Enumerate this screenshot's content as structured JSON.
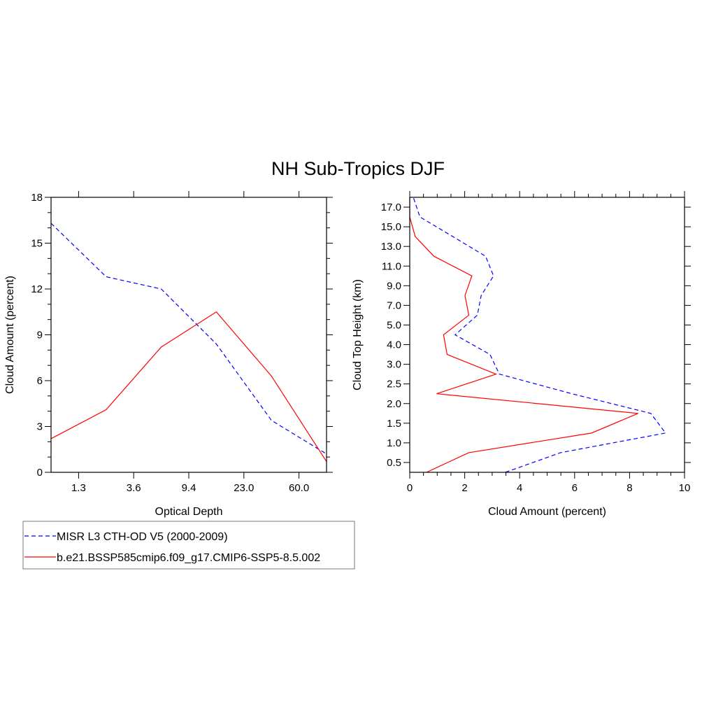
{
  "title": "NH Sub-Tropics DJF",
  "colors": {
    "obs": "#0000ff",
    "model": "#ff0000"
  },
  "legend": {
    "placement": "bottom-left",
    "entries": [
      {
        "label": "MISR L3 CTH-OD V5 (2000-2009)",
        "style": "dashed",
        "color": "#0000ff"
      },
      {
        "label": "b.e21.BSSP585cmip6.f09_g17.CMIP6-SSP5-8.5.002",
        "style": "solid",
        "color": "#ff0000"
      }
    ]
  },
  "chart_data": [
    {
      "type": "line",
      "xlabel": "Optical Depth",
      "ylabel": "Cloud Amount (percent)",
      "x_tick_labels": [
        "1.3",
        "3.6",
        "9.4",
        "23.0",
        "60.0"
      ],
      "ylim": [
        0,
        18
      ],
      "y_ticks": [
        0,
        3,
        6,
        9,
        12,
        15,
        18
      ],
      "grid": false,
      "series": [
        {
          "name": "MISR L3 CTH-OD V5 (2000-2009)",
          "values": [
            16.3,
            12.8,
            12.0,
            8.4,
            3.4,
            1.2
          ]
        },
        {
          "name": "b.e21.BSSP585cmip6.f09_g17.CMIP6-SSP5-8.5.002",
          "values": [
            2.2,
            4.1,
            8.2,
            10.5,
            6.3,
            0.7
          ]
        }
      ]
    },
    {
      "type": "line",
      "xlabel": "Cloud Amount (percent)",
      "ylabel": "Cloud Top Height (km)",
      "xlim": [
        0,
        10
      ],
      "x_ticks": [
        0,
        2,
        4,
        6,
        8,
        10
      ],
      "y_tick_labels": [
        "0.5",
        "1.0",
        "1.5",
        "2.0",
        "2.5",
        "3.0",
        "4.0",
        "5.0",
        "7.0",
        "9.0",
        "11.0",
        "13.0",
        "15.0",
        "17.0"
      ],
      "grid": false,
      "series": [
        {
          "name": "MISR L3 CTH-OD V5 (2000-2009)",
          "values": [
            3.48,
            5.49,
            9.31,
            8.77,
            5.9,
            3.26,
            2.92,
            1.65,
            2.46,
            2.6,
            3.05,
            2.76,
            1.57,
            0.37,
            0.13
          ]
        },
        {
          "name": "b.e21.BSSP585cmip6.f09_g17.CMIP6-SSP5-8.5.002",
          "values": [
            0.61,
            2.15,
            6.62,
            8.31,
            0.98,
            3.14,
            1.36,
            1.23,
            2.15,
            2.01,
            2.26,
            0.88,
            0.2,
            0.0,
            0.0
          ]
        }
      ]
    }
  ]
}
